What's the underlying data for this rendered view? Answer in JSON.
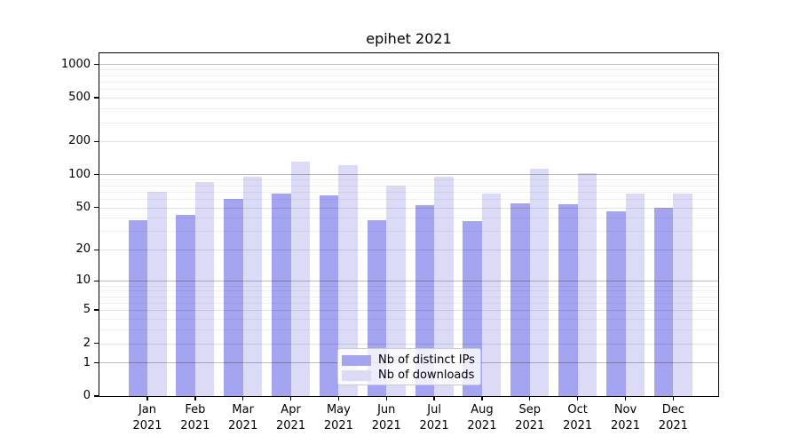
{
  "chart_data": {
    "type": "bar",
    "title": "epihet 2021",
    "categories": [
      "Jan\n2021",
      "Feb\n2021",
      "Mar\n2021",
      "Apr\n2021",
      "May\n2021",
      "Jun\n2021",
      "Jul\n2021",
      "Aug\n2021",
      "Sep\n2021",
      "Oct\n2021",
      "Nov\n2021",
      "Dec\n2021"
    ],
    "series": [
      {
        "name": "Nb of distinct IPs",
        "color": "#a4a4f0",
        "values": [
          38,
          43,
          60,
          67,
          65,
          38,
          52,
          37,
          54,
          53,
          46,
          50
        ]
      },
      {
        "name": "Nb of downloads",
        "color": "#dbdbf8",
        "values": [
          70,
          86,
          96,
          132,
          123,
          79,
          95,
          67,
          114,
          103,
          67,
          67
        ]
      }
    ],
    "xlabel": "",
    "ylabel": "",
    "yscale": "log1p",
    "yticks": [
      0,
      1,
      2,
      5,
      10,
      20,
      50,
      100,
      200,
      500,
      1000
    ],
    "ylim": [
      0,
      1265
    ],
    "grid": true,
    "legend_position": "lower center",
    "colors": {
      "background": "#ffffff",
      "spine": "#000000",
      "grid_major_decades": "#bdbdbd",
      "grid_labeled_minor": "#e2e2e2",
      "grid_unlabeled_minor": "#f1f1f1",
      "legend_border": "#cccccc",
      "legend_background": "#ffffff"
    }
  }
}
